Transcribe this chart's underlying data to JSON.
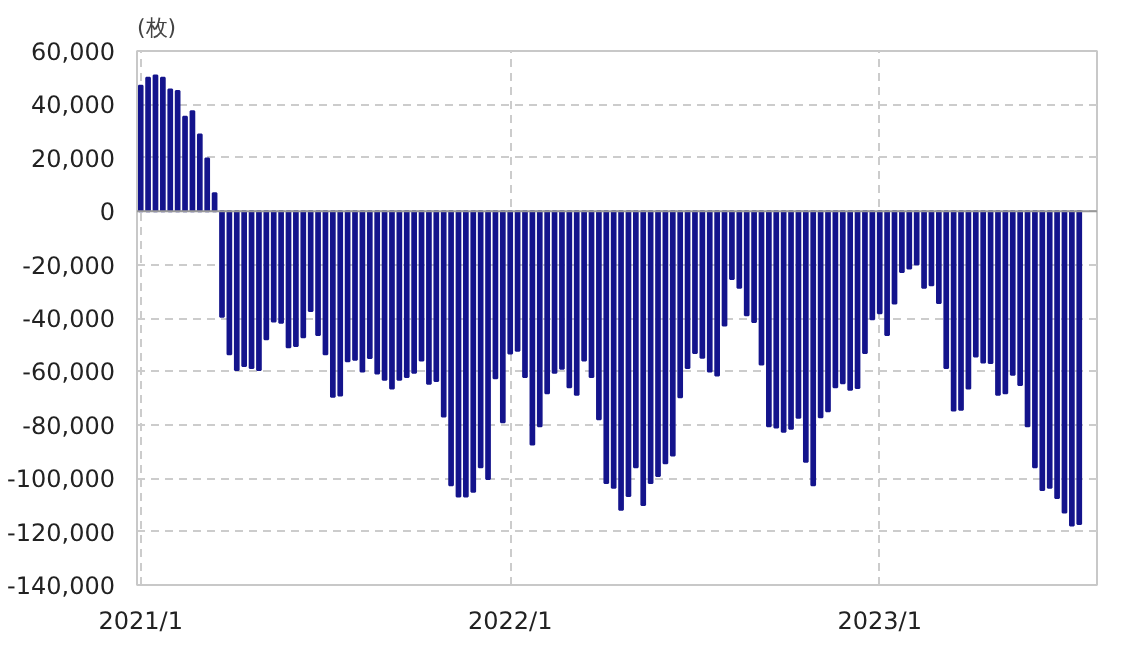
{
  "chart_data": {
    "type": "bar",
    "ylabel": "(枚)",
    "color": "#14148c",
    "categories": [
      "2021/1",
      null,
      null,
      null,
      null,
      null,
      null,
      null,
      null,
      null,
      null,
      null,
      null,
      null,
      null,
      null,
      null,
      null,
      null,
      null,
      null,
      null,
      null,
      null,
      null,
      null,
      null,
      null,
      null,
      null,
      null,
      null,
      null,
      null,
      null,
      null,
      null,
      null,
      null,
      null,
      null,
      null,
      null,
      null,
      null,
      null,
      null,
      null,
      null,
      null,
      "2022/1",
      null,
      null,
      null,
      null,
      null,
      null,
      null,
      null,
      null,
      null,
      null,
      null,
      null,
      null,
      null,
      null,
      null,
      null,
      null,
      null,
      null,
      null,
      null,
      null,
      null,
      null,
      null,
      null,
      null,
      null,
      null,
      null,
      null,
      null,
      null,
      null,
      null,
      null,
      null,
      null,
      null,
      null,
      null,
      null,
      null,
      null,
      null,
      null,
      null,
      "2023/1",
      null,
      null,
      null,
      null,
      null,
      null,
      null,
      null,
      null,
      null,
      null,
      null,
      null,
      null,
      null,
      null,
      null,
      null,
      null,
      null,
      null,
      null,
      null,
      null,
      null,
      null,
      null
    ],
    "values": [
      47000,
      50000,
      50800,
      50000,
      45600,
      45000,
      35400,
      37400,
      28700,
      19700,
      6700,
      -39500,
      -53600,
      -59500,
      -58000,
      -58700,
      -59500,
      -48000,
      -41300,
      -41800,
      -51000,
      -50500,
      -47200,
      -37400,
      -46400,
      -53600,
      -69500,
      -69000,
      -56200,
      -55600,
      -60000,
      -55000,
      -60800,
      -63100,
      -66400,
      -63100,
      -62100,
      -60500,
      -55900,
      -64600,
      -63600,
      -76900,
      -102600,
      -106900,
      -106900,
      -105100,
      -95900,
      -100300,
      -62600,
      -79000,
      -53300,
      -52300,
      -62100,
      -87400,
      -80500,
      -68200,
      -60500,
      -59000,
      -65900,
      -68700,
      -55900,
      -62100,
      -77900,
      -101800,
      -103600,
      -111800,
      -106700,
      -95900,
      -110000,
      -101800,
      -99200,
      -94400,
      -91500,
      -69700,
      -58700,
      -53100,
      -54900,
      -60000,
      -61500,
      -42800,
      -25400,
      -28700,
      -39000,
      -41500,
      -57400,
      -80500,
      -81000,
      -82600,
      -81500,
      -77400,
      -93800,
      -102600,
      -77200,
      -74900,
      -65900,
      -64400,
      -66900,
      -66200,
      -53100,
      -40500,
      -38200,
      -46400,
      -34600,
      -22800,
      -21500,
      -20000,
      -28700,
      -27700,
      -34400,
      -58700,
      -74600,
      -74400,
      -66400,
      -54400,
      -56700,
      -56900,
      -68700,
      -68200,
      -61300,
      -65100,
      -80500,
      -95900,
      -104400,
      -103600,
      -107400,
      -112800,
      -117700,
      -117200
    ],
    "ylim": [
      -140000,
      60000
    ],
    "yticks": [
      {
        "value": 60000,
        "label": "60,000"
      },
      {
        "value": 40000,
        "label": "40,000"
      },
      {
        "value": 20000,
        "label": "20,000"
      },
      {
        "value": 0,
        "label": "0"
      },
      {
        "value": -20000,
        "label": "-20,000"
      },
      {
        "value": -40000,
        "label": "-40,000"
      },
      {
        "value": -60000,
        "label": "-60,000"
      },
      {
        "value": -80000,
        "label": "-80,000"
      },
      {
        "value": -100000,
        "label": "-100,000"
      },
      {
        "value": -120000,
        "label": "-120,000"
      },
      {
        "value": -140000,
        "label": "-140,000"
      }
    ],
    "grid": true
  }
}
